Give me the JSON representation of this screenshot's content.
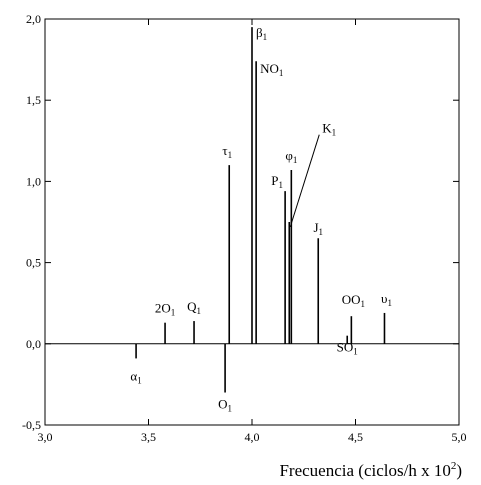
{
  "chart_data": {
    "type": "bar",
    "title": "",
    "xlabel": "Frecuencia (ciclos/h x 10",
    "xlabel_sup": "2",
    "xlabel_close": ")",
    "ylabel": "",
    "xlim": [
      3.0,
      5.0
    ],
    "ylim": [
      -0.5,
      2.0
    ],
    "xticks": [
      "3,0",
      "3,5",
      "4,0",
      "4,5",
      "5,0"
    ],
    "yticks": [
      "-0,5",
      "0,0",
      "0,5",
      "1,0",
      "1,5",
      "2,0"
    ],
    "grid": false,
    "series": [
      {
        "values": [
          {
            "x": 3.44,
            "y": -0.09,
            "label": "α",
            "sub": "1"
          },
          {
            "x": 3.58,
            "y": 0.13,
            "label": "2O",
            "sub": "1"
          },
          {
            "x": 3.72,
            "y": 0.14,
            "label": "Q",
            "sub": "1"
          },
          {
            "x": 3.87,
            "y": -0.3,
            "label": "O",
            "sub": "1"
          },
          {
            "x": 3.89,
            "y": 1.1,
            "label": "τ",
            "sub": "1"
          },
          {
            "x": 4.0,
            "y": 1.95,
            "label": "β",
            "sub": "1"
          },
          {
            "x": 4.02,
            "y": 1.74,
            "label": "NO",
            "sub": "1"
          },
          {
            "x": 4.16,
            "y": 0.94,
            "label": "P",
            "sub": "1"
          },
          {
            "x": 4.18,
            "y": 0.75,
            "label": "K",
            "sub": "1"
          },
          {
            "x": 4.19,
            "y": 1.07,
            "label": "φ",
            "sub": "1"
          },
          {
            "x": 4.32,
            "y": 0.65,
            "label": "J",
            "sub": "1"
          },
          {
            "x": 4.46,
            "y": 0.05,
            "label": "SO",
            "sub": "1"
          },
          {
            "x": 4.48,
            "y": 0.17,
            "label": "OO",
            "sub": "1"
          },
          {
            "x": 4.64,
            "y": 0.19,
            "label": "υ",
            "sub": "1"
          }
        ]
      }
    ]
  }
}
